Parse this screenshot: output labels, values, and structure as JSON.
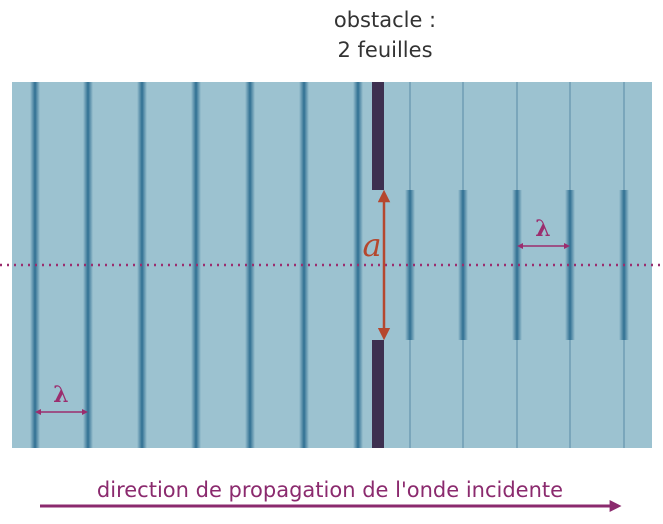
{
  "header": {
    "line1": "obstacle :",
    "line2": "2 feuilles"
  },
  "labels": {
    "gap": "a",
    "wavelength_right": "λ",
    "wavelength_left": "λ"
  },
  "footer": {
    "caption": "direction de propagation de l'onde incidente"
  }
}
